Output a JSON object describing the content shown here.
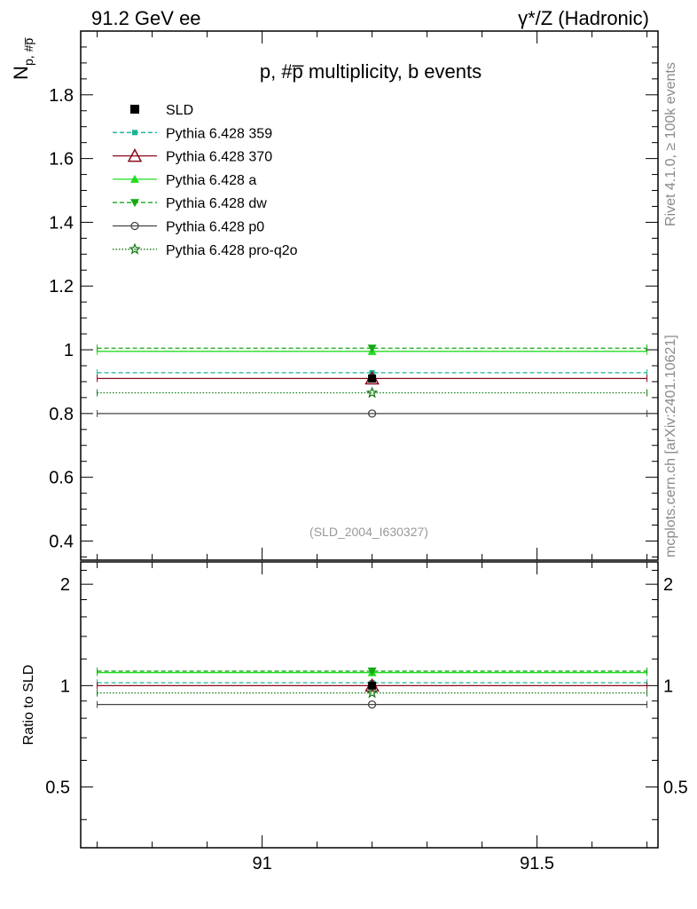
{
  "header": {
    "left": "91.2 GeV ee",
    "right": "γ*/Z (Hadronic)"
  },
  "side": {
    "rivet": "Rivet 4.1.0, ≥ 100k events",
    "mcplots": "mcplots.cern.ch [arXiv:2401.10621]"
  },
  "chart_data": [
    {
      "type": "line",
      "panel": "main",
      "title": "p, #p̅ multiplicity, b events",
      "ylabel": "N_{p, #p̅}",
      "xlabel": "",
      "xlim": [
        90.67,
        91.72
      ],
      "ylim": [
        0.34,
        2.0
      ],
      "yticks": [
        0.4,
        0.6,
        0.8,
        1,
        1.2,
        1.4,
        1.6,
        1.8
      ],
      "yticklabels": [
        "0.4",
        "0.6",
        "0.8",
        "1",
        "1.2",
        "1.4",
        "1.6",
        "1.8"
      ],
      "annotation": "(SLD_2004_I630327)",
      "x": [
        91.2
      ],
      "x_range": [
        90.7,
        91.7
      ],
      "series": [
        {
          "name": "SLD",
          "values": [
            0.91
          ],
          "color": "#000000",
          "marker": "square",
          "dash": "solid"
        },
        {
          "name": "Pythia 6.428 359",
          "values": [
            0.928
          ],
          "color": "#1ab394",
          "marker": "small-square",
          "dash": "dashed"
        },
        {
          "name": "Pythia 6.428 370",
          "values": [
            0.91
          ],
          "color": "#8b0a1e",
          "marker": "triangle-open",
          "dash": "solid"
        },
        {
          "name": "Pythia 6.428 a",
          "values": [
            0.995
          ],
          "color": "#22dd22",
          "marker": "triangle",
          "dash": "solid"
        },
        {
          "name": "Pythia 6.428 dw",
          "values": [
            1.005
          ],
          "color": "#11aa11",
          "marker": "triangle-down",
          "dash": "dashed"
        },
        {
          "name": "Pythia 6.428 p0",
          "values": [
            0.8
          ],
          "color": "#444444",
          "marker": "circle-open",
          "dash": "solid"
        },
        {
          "name": "Pythia 6.428 pro-q2o",
          "values": [
            0.865
          ],
          "color": "#117711",
          "marker": "star-open",
          "dash": "dotted"
        }
      ]
    },
    {
      "type": "line",
      "panel": "ratio",
      "ylabel": "Ratio to SLD",
      "xlabel": "",
      "xlim": [
        90.67,
        91.72
      ],
      "ylim": [
        0.33,
        2.33
      ],
      "scale": "log",
      "yticks": [
        0.5,
        1,
        2
      ],
      "yticklabels": [
        "0.5",
        "1",
        "2"
      ],
      "xticks": [
        91,
        91.5
      ],
      "xticklabels": [
        "91",
        "91.5"
      ],
      "x": [
        91.2
      ],
      "x_range": [
        90.7,
        91.7
      ],
      "series": [
        {
          "name": "SLD",
          "values": [
            1.0
          ]
        },
        {
          "name": "Pythia 6.428 359",
          "values": [
            1.02
          ]
        },
        {
          "name": "Pythia 6.428 370",
          "values": [
            1.0
          ]
        },
        {
          "name": "Pythia 6.428 a",
          "values": [
            1.093
          ]
        },
        {
          "name": "Pythia 6.428 dw",
          "values": [
            1.104
          ]
        },
        {
          "name": "Pythia 6.428 p0",
          "values": [
            0.879
          ]
        },
        {
          "name": "Pythia 6.428 pro-q2o",
          "values": [
            0.951
          ]
        }
      ]
    }
  ]
}
